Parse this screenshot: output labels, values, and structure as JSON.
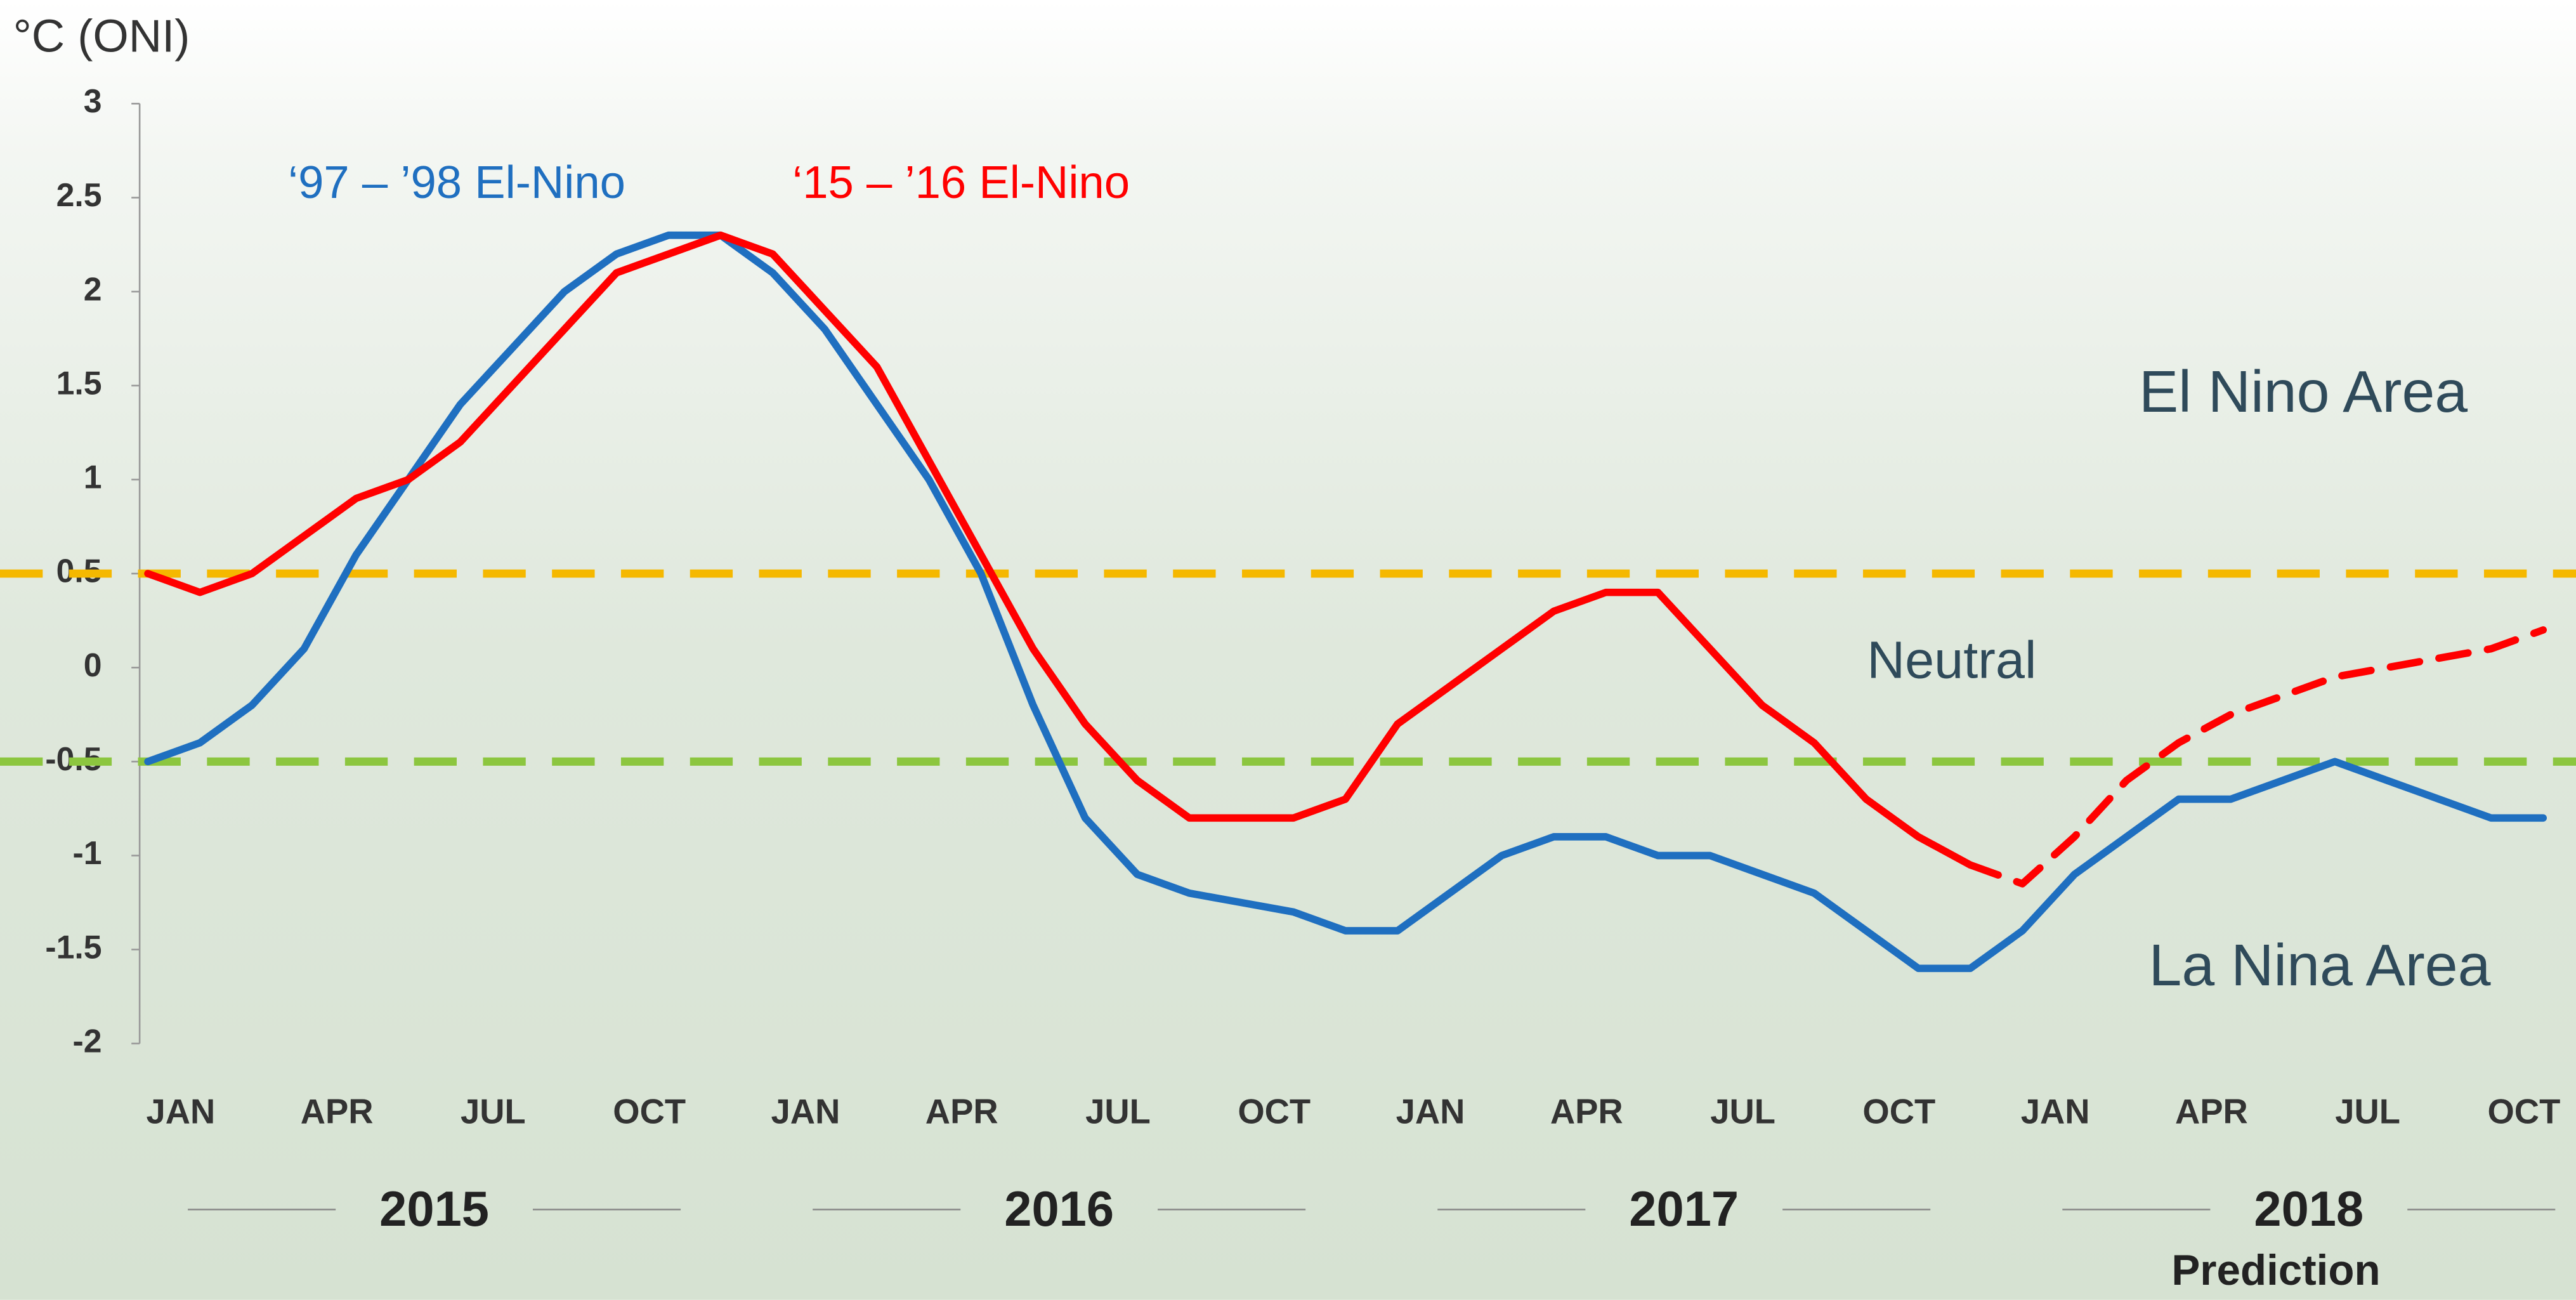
{
  "chart_data": {
    "type": "line",
    "ylabel": "°C (ONI)",
    "categories": [
      "JAN",
      null,
      null,
      "APR",
      null,
      null,
      "JUL",
      null,
      null,
      "OCT",
      null,
      null,
      "JAN",
      null,
      null,
      "APR",
      null,
      null,
      "JUL",
      null,
      null,
      "OCT",
      null,
      null,
      "JAN",
      null,
      null,
      "APR",
      null,
      null,
      "JUL",
      null,
      null,
      "OCT",
      null,
      null,
      "JAN",
      null,
      null,
      "APR",
      null,
      null,
      "JUL",
      null,
      null,
      "OCT",
      null
    ],
    "year_labels": [
      "2015",
      "2016",
      "2017",
      "2018"
    ],
    "prediction_label": "Prediction",
    "series": [
      {
        "name": "‘97 – ’98 El-Nino",
        "color": "#1f6fc0",
        "style": "solid",
        "values": [
          -0.5,
          -0.4,
          -0.2,
          0.1,
          0.6,
          1.0,
          1.4,
          1.7,
          2.0,
          2.2,
          2.3,
          2.3,
          2.1,
          1.8,
          1.4,
          1.0,
          0.5,
          -0.2,
          -0.8,
          -1.1,
          -1.2,
          -1.25,
          -1.3,
          -1.4,
          -1.4,
          -1.2,
          -1.0,
          -0.9,
          -0.9,
          -1.0,
          -1.0,
          -1.1,
          -1.2,
          -1.4,
          -1.6,
          -1.6,
          -1.4,
          -1.1,
          -0.9,
          -0.7,
          -0.7,
          -0.6,
          -0.5,
          -0.6,
          -0.7,
          -0.8,
          -0.8
        ]
      },
      {
        "name": "‘15 – ’16 El-Nino",
        "color": "#ff0000",
        "style": "solid",
        "values": [
          0.5,
          0.4,
          0.5,
          0.7,
          0.9,
          1.0,
          1.2,
          1.5,
          1.8,
          2.1,
          2.2,
          2.3,
          2.2,
          1.9,
          1.6,
          1.1,
          0.6,
          0.1,
          -0.3,
          -0.6,
          -0.8,
          -0.8,
          -0.8,
          -0.7,
          -0.3,
          -0.1,
          0.1,
          0.3,
          0.4,
          0.4,
          0.1,
          -0.2,
          -0.4,
          -0.7,
          -0.9,
          -1.05,
          null,
          null,
          null,
          null,
          null,
          null,
          null,
          null,
          null,
          null,
          null
        ]
      },
      {
        "color": "#ff0000",
        "style": "dashed",
        "values": [
          null,
          null,
          null,
          null,
          null,
          null,
          null,
          null,
          null,
          null,
          null,
          null,
          null,
          null,
          null,
          null,
          null,
          null,
          null,
          null,
          null,
          null,
          null,
          null,
          null,
          null,
          null,
          null,
          null,
          null,
          null,
          null,
          null,
          null,
          null,
          -1.05,
          -1.15,
          -0.9,
          -0.6,
          -0.4,
          -0.25,
          -0.15,
          -0.05,
          0.0,
          0.05,
          0.1,
          0.2
        ]
      }
    ],
    "reference_lines": [
      {
        "value": 0.5,
        "color": "#f5b800"
      },
      {
        "value": -0.5,
        "color": "#8cc63f"
      }
    ],
    "annotations": [
      "El Nino Area",
      "Neutral",
      "La Nina Area"
    ],
    "ylim": [
      -2,
      3
    ],
    "yticks": [
      -2,
      -1.5,
      -1,
      -0.5,
      0,
      0.5,
      1,
      1.5,
      2,
      2.5,
      3
    ]
  }
}
